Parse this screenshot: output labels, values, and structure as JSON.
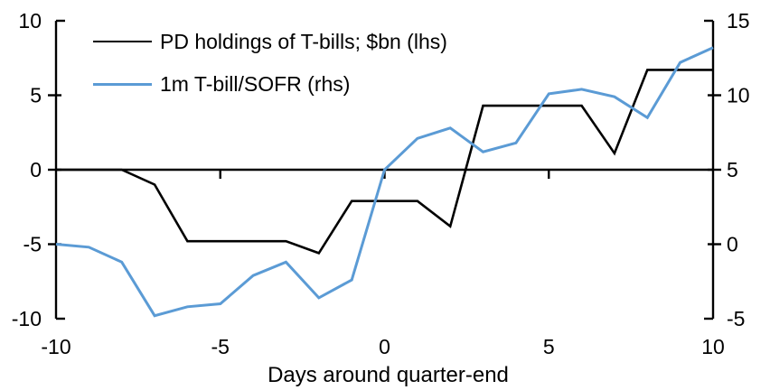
{
  "chart_data": {
    "type": "line",
    "title": "",
    "xlabel": "Days around quarter-end",
    "x": [
      -10,
      -9,
      -8,
      -7,
      -6,
      -5,
      -4,
      -3,
      -2,
      -1,
      0,
      1,
      2,
      3,
      4,
      5,
      6,
      7,
      8,
      9,
      10
    ],
    "x_ticks": [
      -10,
      -5,
      0,
      5,
      10
    ],
    "left_axis": {
      "min": -10,
      "max": 10,
      "ticks": [
        10,
        5,
        0,
        -5,
        -10
      ]
    },
    "right_axis": {
      "min": -5,
      "max": 15,
      "ticks": [
        15,
        10,
        5,
        0,
        -5
      ]
    },
    "grid": false,
    "legend_position": "top-left-inside",
    "series": [
      {
        "name": "PD holdings of T-bills; $bn (lhs)",
        "axis": "left",
        "color": "#000000",
        "stroke_width": 2.6,
        "values": [
          0,
          0,
          0,
          -1,
          -4.8,
          -4.8,
          -4.8,
          -4.8,
          -5.6,
          -2.1,
          -2.1,
          -2.1,
          -3.8,
          4.3,
          4.3,
          4.3,
          4.3,
          1.1,
          6.7,
          6.7,
          6.7
        ]
      },
      {
        "name": "1m T-bill/SOFR (rhs)",
        "axis": "right",
        "color": "#5B9BD5",
        "stroke_width": 3,
        "values": [
          0,
          -0.2,
          -1.2,
          -4.8,
          -4.2,
          -4.0,
          -2.1,
          -1.2,
          -3.6,
          -2.4,
          5.0,
          7.1,
          7.8,
          6.2,
          6.8,
          10.1,
          10.4,
          9.9,
          8.5,
          12.2,
          13.2
        ]
      }
    ]
  }
}
